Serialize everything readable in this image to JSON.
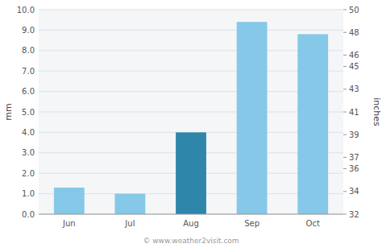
{
  "chart_data": {
    "type": "bar",
    "categories": [
      "Jun",
      "Jul",
      "Aug",
      "Sep",
      "Oct"
    ],
    "values": [
      1.3,
      1.0,
      4.0,
      9.4,
      8.8
    ],
    "colors": [
      "#85c8e8",
      "#85c8e8",
      "#2e86ab",
      "#85c8e8",
      "#85c8e8"
    ],
    "ylabel": "mm",
    "y2label": "inches",
    "ylim": [
      0.0,
      10.0
    ],
    "yticks": [
      {
        "value": 0.0,
        "label": "0.0"
      },
      {
        "value": 1.0,
        "label": "1.0"
      },
      {
        "value": 2.0,
        "label": "2.0"
      },
      {
        "value": 3.0,
        "label": "3.0"
      },
      {
        "value": 4.0,
        "label": "4.0"
      },
      {
        "value": 5.0,
        "label": "5.0"
      },
      {
        "value": 6.0,
        "label": "6.0"
      },
      {
        "value": 7.0,
        "label": "7.0"
      },
      {
        "value": 8.0,
        "label": "8.0"
      },
      {
        "value": 9.0,
        "label": "9.0"
      },
      {
        "value": 10.0,
        "label": "10.0"
      }
    ],
    "y2lim": [
      32,
      50
    ],
    "y2ticks": [
      32,
      34,
      36,
      37,
      39,
      41,
      43,
      45,
      46,
      48,
      50
    ],
    "grid": true,
    "annotations": [
      "© www.weather2visit.com"
    ]
  }
}
